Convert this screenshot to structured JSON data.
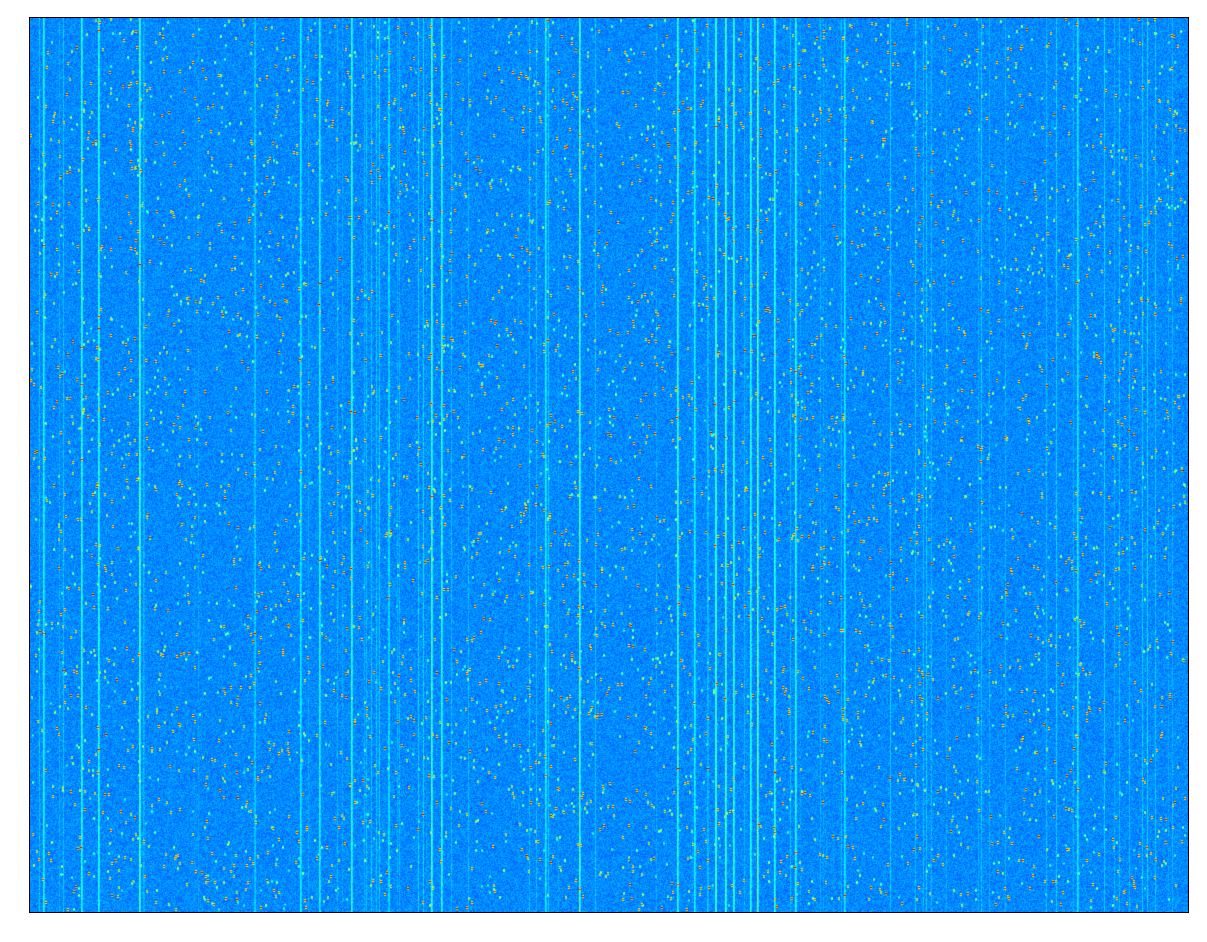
{
  "image": {
    "kind": "heatmap-image",
    "colormap": "jet",
    "axes_visible": false,
    "colors": {
      "background": "#1f5cf0",
      "streak": "#40d8f0",
      "hot_low": "#f0e020",
      "hot_high": "#b00000",
      "frame": "#000000"
    }
  }
}
